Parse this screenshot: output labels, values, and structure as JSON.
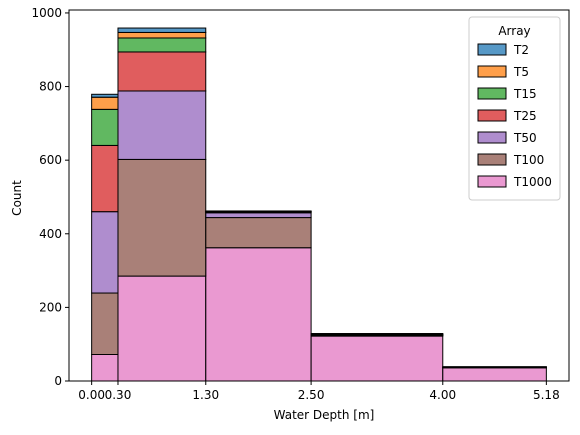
{
  "chart_data": {
    "type": "bar",
    "stacked": true,
    "histogram": true,
    "xlabel": "Water Depth [m]",
    "ylabel": "Count",
    "xlim": [
      -0.258,
      5.438
    ],
    "ylim": [
      0,
      1008
    ],
    "bin_edges": [
      0.0,
      0.3,
      1.3,
      2.5,
      4.0,
      5.18
    ],
    "x_ticks": [
      0.0,
      0.3,
      1.3,
      2.5,
      4.0,
      5.18
    ],
    "x_tick_labels": [
      "0.00",
      "0.30",
      "1.30",
      "2.50",
      "4.00",
      "5.18"
    ],
    "y_ticks": [
      0,
      200,
      400,
      600,
      800,
      1000
    ],
    "y_tick_labels": [
      "0",
      "200",
      "400",
      "600",
      "800",
      "1000"
    ],
    "grid": false,
    "legend": {
      "title": "Array",
      "placement": "top-right"
    },
    "series": [
      {
        "name": "T1000",
        "color": "#e377c2",
        "values": [
          72,
          285,
          362,
          122,
          36
        ]
      },
      {
        "name": "T100",
        "color": "#8c564b",
        "values": [
          167,
          317,
          82,
          2,
          1
        ]
      },
      {
        "name": "T50",
        "color": "#9467bd",
        "values": [
          221,
          186,
          13,
          1,
          1
        ]
      },
      {
        "name": "T25",
        "color": "#d62728",
        "values": [
          180,
          106,
          2,
          1,
          0
        ]
      },
      {
        "name": "T15",
        "color": "#2ca02c",
        "values": [
          98,
          38,
          1,
          1,
          0
        ]
      },
      {
        "name": "T5",
        "color": "#ff7f0e",
        "values": [
          33,
          15,
          1,
          1,
          0
        ]
      },
      {
        "name": "T2",
        "color": "#1f77b4",
        "values": [
          8,
          12,
          1,
          1,
          1
        ]
      }
    ],
    "legend_order": [
      "T2",
      "T5",
      "T15",
      "T25",
      "T50",
      "T100",
      "T1000"
    ]
  }
}
